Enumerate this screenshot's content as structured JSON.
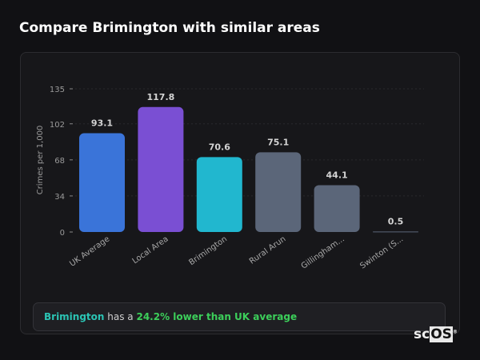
{
  "title": "Compare Brimington with similar areas",
  "chart_data": {
    "type": "bar",
    "ylabel": "Crimes per 1,000",
    "ylim": [
      0,
      135
    ],
    "yticks": [
      0,
      34,
      68,
      102,
      135
    ],
    "grid": true,
    "categories": [
      "UK Average",
      "Local Area",
      "Brimington",
      "Rural Arun",
      "Gillingham...",
      "Swinton (S..."
    ],
    "values": [
      93.1,
      117.8,
      70.6,
      75.1,
      44.1,
      0.5
    ],
    "value_labels": [
      "93.1",
      "117.8",
      "70.6",
      "75.1",
      "44.1",
      "0.5"
    ],
    "colors": [
      "#3a74d9",
      "#7a4fd3",
      "#21b7cf",
      "#5b6679",
      "#5b6679",
      "#5b6679"
    ]
  },
  "summary": {
    "area": "Brimington",
    "middle": " has a ",
    "comparison": "24.2% lower than UK average"
  },
  "logo": {
    "sc": "sc",
    "os": "OS",
    "mark": "®"
  }
}
